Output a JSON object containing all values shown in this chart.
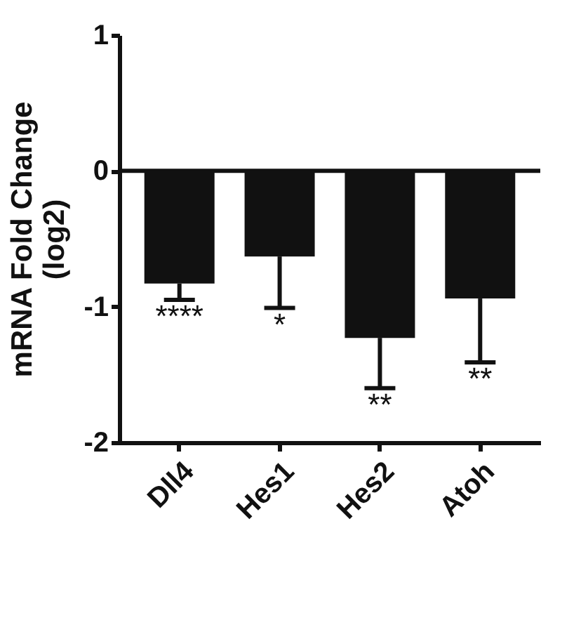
{
  "chart_data": {
    "type": "bar",
    "ylabel": "mRNA Fold Change\n(log2)",
    "categories": [
      "Dll4",
      "Hes1",
      "Hes2",
      "Atoh"
    ],
    "values": [
      -0.83,
      -0.63,
      -1.23,
      -0.94
    ],
    "errors": [
      [
        -0.95,
        -0.83
      ],
      [
        -1.01,
        -0.63
      ],
      [
        -1.6,
        -1.23
      ],
      [
        -1.41,
        -0.94
      ]
    ],
    "color": "#111111",
    "ylim": [
      -2,
      1
    ],
    "yticks": [
      -2,
      -1,
      0,
      1
    ],
    "grid": false,
    "ref_lines": [
      {
        "axis": "y",
        "value": 0
      }
    ],
    "annotations": [
      {
        "text": "****",
        "x": "Dll4",
        "y": -0.95
      },
      {
        "text": "*",
        "x": "Hes1",
        "y": -1.01
      },
      {
        "text": "**",
        "x": "Hes2",
        "y": -1.6
      },
      {
        "text": "**",
        "x": "Atoh",
        "y": -1.41
      }
    ]
  }
}
